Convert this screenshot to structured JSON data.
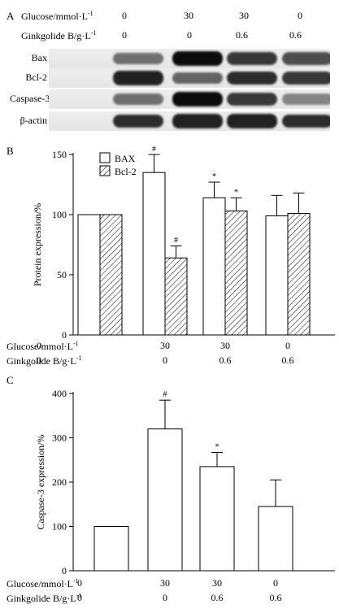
{
  "panelA": {
    "letter": "A",
    "rows": [
      {
        "label": "Glucose/mmol·L",
        "sup": "-1",
        "values": [
          "0",
          "30",
          "30",
          "0"
        ]
      },
      {
        "label": "Ginkgolide B/g·L",
        "sup": "-1",
        "values": [
          "0",
          "0",
          "0.6",
          "0.6"
        ]
      }
    ],
    "blots": [
      {
        "label": "Bax",
        "intensity": [
          0.55,
          1.0,
          0.8,
          0.7
        ]
      },
      {
        "label": "Bcl-2",
        "intensity": [
          0.9,
          0.6,
          0.85,
          0.8
        ]
      },
      {
        "label": "Caspase-3",
        "intensity": [
          0.55,
          1.0,
          0.8,
          0.45
        ]
      },
      {
        "label": "β-actin",
        "intensity": [
          0.85,
          0.9,
          0.9,
          0.85
        ]
      }
    ]
  },
  "chart_data": [
    {
      "type": "bar",
      "panel": "B",
      "categories": [
        "1",
        "2",
        "3",
        "4"
      ],
      "series": [
        {
          "name": "BAX",
          "values": [
            100,
            135,
            114,
            99
          ],
          "errors": [
            0,
            15,
            13,
            17
          ],
          "marks": [
            "",
            "#",
            "*",
            ""
          ]
        },
        {
          "name": "Bcl-2",
          "values": [
            100,
            64,
            103,
            101
          ],
          "errors": [
            0,
            10,
            11,
            17
          ],
          "marks": [
            "",
            "#",
            "*",
            ""
          ]
        }
      ],
      "ylabel": "Protein expression/%",
      "ylim": [
        0,
        150
      ],
      "yticks": [
        0,
        50,
        100,
        150
      ],
      "legend": "top-left",
      "x_rows": [
        {
          "label": "Glucose/mmol·L",
          "sup": "-1",
          "values": [
            "0",
            "30",
            "30",
            "0"
          ]
        },
        {
          "label": "Ginkgolide B/g·L",
          "sup": "-1",
          "values": [
            "0",
            "0",
            "0.6",
            "0.6"
          ]
        }
      ]
    },
    {
      "type": "bar",
      "panel": "C",
      "categories": [
        "1",
        "2",
        "3",
        "4"
      ],
      "series": [
        {
          "values": [
            100,
            320,
            235,
            145
          ],
          "errors": [
            0,
            65,
            32,
            60
          ],
          "marks": [
            "",
            "#",
            "*",
            ""
          ]
        }
      ],
      "ylabel": "Caspase-3 expression/%",
      "ylim": [
        0,
        400
      ],
      "yticks": [
        0,
        100,
        200,
        300,
        400
      ],
      "x_rows": [
        {
          "label": "Glucose/mmol·L",
          "sup": "-1",
          "values": [
            "0",
            "30",
            "30",
            "0"
          ]
        },
        {
          "label": "Ginkgolide B/g·L",
          "sup": "-1",
          "values": [
            "0",
            "0",
            "0.6",
            "0.6"
          ]
        }
      ]
    }
  ],
  "panel_letters": {
    "B": "B",
    "C": "C"
  }
}
